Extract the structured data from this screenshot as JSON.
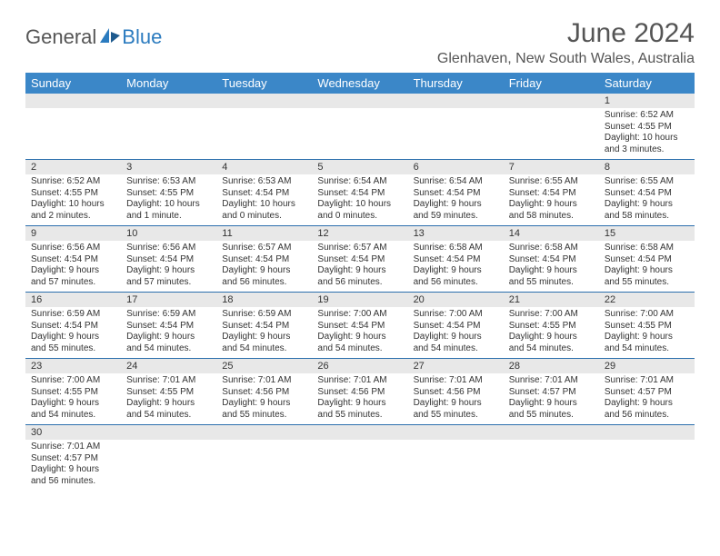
{
  "logo": {
    "general": "General",
    "blue": "Blue"
  },
  "title": "June 2024",
  "location": "Glenhaven, New South Wales, Australia",
  "colors": {
    "header_bg": "#3b87c8",
    "header_text": "#ffffff",
    "daynum_bg": "#e8e8e8",
    "border": "#2b6fad",
    "logo_blue": "#2b7bbf",
    "logo_gray": "#555555"
  },
  "weekdays": [
    "Sunday",
    "Monday",
    "Tuesday",
    "Wednesday",
    "Thursday",
    "Friday",
    "Saturday"
  ],
  "weeks": [
    [
      null,
      null,
      null,
      null,
      null,
      null,
      {
        "d": "1",
        "sr": "Sunrise: 6:52 AM",
        "ss": "Sunset: 4:55 PM",
        "dl1": "Daylight: 10 hours",
        "dl2": "and 3 minutes."
      }
    ],
    [
      {
        "d": "2",
        "sr": "Sunrise: 6:52 AM",
        "ss": "Sunset: 4:55 PM",
        "dl1": "Daylight: 10 hours",
        "dl2": "and 2 minutes."
      },
      {
        "d": "3",
        "sr": "Sunrise: 6:53 AM",
        "ss": "Sunset: 4:55 PM",
        "dl1": "Daylight: 10 hours",
        "dl2": "and 1 minute."
      },
      {
        "d": "4",
        "sr": "Sunrise: 6:53 AM",
        "ss": "Sunset: 4:54 PM",
        "dl1": "Daylight: 10 hours",
        "dl2": "and 0 minutes."
      },
      {
        "d": "5",
        "sr": "Sunrise: 6:54 AM",
        "ss": "Sunset: 4:54 PM",
        "dl1": "Daylight: 10 hours",
        "dl2": "and 0 minutes."
      },
      {
        "d": "6",
        "sr": "Sunrise: 6:54 AM",
        "ss": "Sunset: 4:54 PM",
        "dl1": "Daylight: 9 hours",
        "dl2": "and 59 minutes."
      },
      {
        "d": "7",
        "sr": "Sunrise: 6:55 AM",
        "ss": "Sunset: 4:54 PM",
        "dl1": "Daylight: 9 hours",
        "dl2": "and 58 minutes."
      },
      {
        "d": "8",
        "sr": "Sunrise: 6:55 AM",
        "ss": "Sunset: 4:54 PM",
        "dl1": "Daylight: 9 hours",
        "dl2": "and 58 minutes."
      }
    ],
    [
      {
        "d": "9",
        "sr": "Sunrise: 6:56 AM",
        "ss": "Sunset: 4:54 PM",
        "dl1": "Daylight: 9 hours",
        "dl2": "and 57 minutes."
      },
      {
        "d": "10",
        "sr": "Sunrise: 6:56 AM",
        "ss": "Sunset: 4:54 PM",
        "dl1": "Daylight: 9 hours",
        "dl2": "and 57 minutes."
      },
      {
        "d": "11",
        "sr": "Sunrise: 6:57 AM",
        "ss": "Sunset: 4:54 PM",
        "dl1": "Daylight: 9 hours",
        "dl2": "and 56 minutes."
      },
      {
        "d": "12",
        "sr": "Sunrise: 6:57 AM",
        "ss": "Sunset: 4:54 PM",
        "dl1": "Daylight: 9 hours",
        "dl2": "and 56 minutes."
      },
      {
        "d": "13",
        "sr": "Sunrise: 6:58 AM",
        "ss": "Sunset: 4:54 PM",
        "dl1": "Daylight: 9 hours",
        "dl2": "and 56 minutes."
      },
      {
        "d": "14",
        "sr": "Sunrise: 6:58 AM",
        "ss": "Sunset: 4:54 PM",
        "dl1": "Daylight: 9 hours",
        "dl2": "and 55 minutes."
      },
      {
        "d": "15",
        "sr": "Sunrise: 6:58 AM",
        "ss": "Sunset: 4:54 PM",
        "dl1": "Daylight: 9 hours",
        "dl2": "and 55 minutes."
      }
    ],
    [
      {
        "d": "16",
        "sr": "Sunrise: 6:59 AM",
        "ss": "Sunset: 4:54 PM",
        "dl1": "Daylight: 9 hours",
        "dl2": "and 55 minutes."
      },
      {
        "d": "17",
        "sr": "Sunrise: 6:59 AM",
        "ss": "Sunset: 4:54 PM",
        "dl1": "Daylight: 9 hours",
        "dl2": "and 54 minutes."
      },
      {
        "d": "18",
        "sr": "Sunrise: 6:59 AM",
        "ss": "Sunset: 4:54 PM",
        "dl1": "Daylight: 9 hours",
        "dl2": "and 54 minutes."
      },
      {
        "d": "19",
        "sr": "Sunrise: 7:00 AM",
        "ss": "Sunset: 4:54 PM",
        "dl1": "Daylight: 9 hours",
        "dl2": "and 54 minutes."
      },
      {
        "d": "20",
        "sr": "Sunrise: 7:00 AM",
        "ss": "Sunset: 4:54 PM",
        "dl1": "Daylight: 9 hours",
        "dl2": "and 54 minutes."
      },
      {
        "d": "21",
        "sr": "Sunrise: 7:00 AM",
        "ss": "Sunset: 4:55 PM",
        "dl1": "Daylight: 9 hours",
        "dl2": "and 54 minutes."
      },
      {
        "d": "22",
        "sr": "Sunrise: 7:00 AM",
        "ss": "Sunset: 4:55 PM",
        "dl1": "Daylight: 9 hours",
        "dl2": "and 54 minutes."
      }
    ],
    [
      {
        "d": "23",
        "sr": "Sunrise: 7:00 AM",
        "ss": "Sunset: 4:55 PM",
        "dl1": "Daylight: 9 hours",
        "dl2": "and 54 minutes."
      },
      {
        "d": "24",
        "sr": "Sunrise: 7:01 AM",
        "ss": "Sunset: 4:55 PM",
        "dl1": "Daylight: 9 hours",
        "dl2": "and 54 minutes."
      },
      {
        "d": "25",
        "sr": "Sunrise: 7:01 AM",
        "ss": "Sunset: 4:56 PM",
        "dl1": "Daylight: 9 hours",
        "dl2": "and 55 minutes."
      },
      {
        "d": "26",
        "sr": "Sunrise: 7:01 AM",
        "ss": "Sunset: 4:56 PM",
        "dl1": "Daylight: 9 hours",
        "dl2": "and 55 minutes."
      },
      {
        "d": "27",
        "sr": "Sunrise: 7:01 AM",
        "ss": "Sunset: 4:56 PM",
        "dl1": "Daylight: 9 hours",
        "dl2": "and 55 minutes."
      },
      {
        "d": "28",
        "sr": "Sunrise: 7:01 AM",
        "ss": "Sunset: 4:57 PM",
        "dl1": "Daylight: 9 hours",
        "dl2": "and 55 minutes."
      },
      {
        "d": "29",
        "sr": "Sunrise: 7:01 AM",
        "ss": "Sunset: 4:57 PM",
        "dl1": "Daylight: 9 hours",
        "dl2": "and 56 minutes."
      }
    ],
    [
      {
        "d": "30",
        "sr": "Sunrise: 7:01 AM",
        "ss": "Sunset: 4:57 PM",
        "dl1": "Daylight: 9 hours",
        "dl2": "and 56 minutes."
      },
      null,
      null,
      null,
      null,
      null,
      null
    ]
  ]
}
